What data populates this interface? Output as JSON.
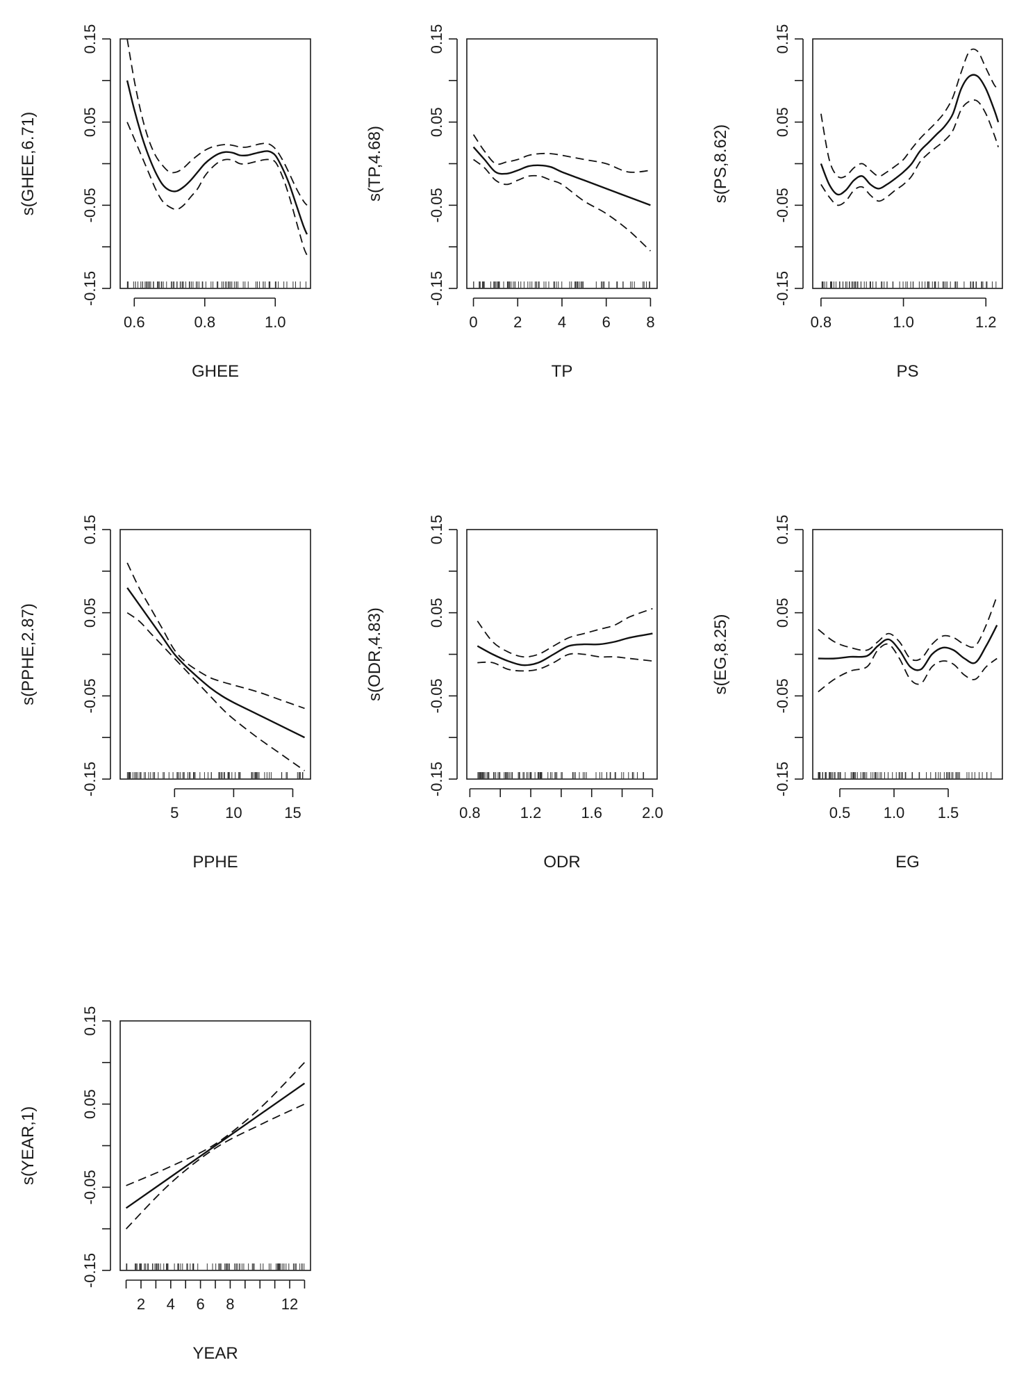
{
  "chart_data": [
    {
      "type": "line",
      "title": "",
      "xlabel": "GHEE",
      "ylabel": "s(GHEE,6.71)",
      "xlim": [
        0.56,
        1.1
      ],
      "ylim": [
        -0.15,
        0.15
      ],
      "xticks": [
        0.6,
        0.8,
        1.0
      ],
      "xtick_labels": [
        "0.6",
        "0.8",
        "1.0"
      ],
      "yticks": [
        -0.15,
        -0.1,
        -0.05,
        0,
        0.05,
        0.1,
        0.15
      ],
      "ytick_labels": [
        "-0.15",
        "",
        "-0.05",
        "",
        "0.05",
        "",
        "0.15"
      ],
      "series": [
        {
          "name": "fit",
          "x": [
            0.58,
            0.6,
            0.62,
            0.64,
            0.66,
            0.68,
            0.7,
            0.72,
            0.74,
            0.76,
            0.78,
            0.8,
            0.82,
            0.84,
            0.86,
            0.88,
            0.9,
            0.92,
            0.94,
            0.96,
            0.98,
            1.0,
            1.02,
            1.04,
            1.06,
            1.08,
            1.09
          ],
          "y": [
            0.1,
            0.065,
            0.035,
            0.01,
            -0.01,
            -0.025,
            -0.032,
            -0.033,
            -0.028,
            -0.02,
            -0.01,
            0.0,
            0.007,
            0.012,
            0.014,
            0.013,
            0.01,
            0.01,
            0.012,
            0.014,
            0.015,
            0.01,
            -0.005,
            -0.025,
            -0.05,
            -0.075,
            -0.085
          ]
        },
        {
          "name": "upper",
          "x": [
            0.58,
            0.6,
            0.62,
            0.64,
            0.66,
            0.68,
            0.7,
            0.72,
            0.74,
            0.76,
            0.78,
            0.8,
            0.82,
            0.84,
            0.86,
            0.88,
            0.9,
            0.92,
            0.94,
            0.96,
            0.98,
            1.0,
            1.02,
            1.04,
            1.06,
            1.08,
            1.09
          ],
          "y": [
            0.15,
            0.1,
            0.06,
            0.03,
            0.01,
            -0.002,
            -0.01,
            -0.01,
            -0.005,
            0.003,
            0.01,
            0.016,
            0.02,
            0.022,
            0.023,
            0.022,
            0.02,
            0.02,
            0.022,
            0.024,
            0.024,
            0.018,
            0.005,
            -0.012,
            -0.03,
            -0.045,
            -0.05
          ]
        },
        {
          "name": "lower",
          "x": [
            0.58,
            0.6,
            0.62,
            0.64,
            0.66,
            0.68,
            0.7,
            0.72,
            0.74,
            0.76,
            0.78,
            0.8,
            0.82,
            0.84,
            0.86,
            0.88,
            0.9,
            0.92,
            0.94,
            0.96,
            0.98,
            1.0,
            1.02,
            1.04,
            1.06,
            1.08,
            1.09
          ],
          "y": [
            0.05,
            0.03,
            0.01,
            -0.01,
            -0.03,
            -0.045,
            -0.052,
            -0.055,
            -0.05,
            -0.04,
            -0.03,
            -0.015,
            -0.005,
            0.002,
            0.005,
            0.004,
            0.0,
            0.0,
            0.002,
            0.004,
            0.005,
            0.002,
            -0.015,
            -0.04,
            -0.07,
            -0.1,
            -0.11
          ]
        }
      ]
    },
    {
      "type": "line",
      "title": "",
      "xlabel": "TP",
      "ylabel": "s(TP,4.68)",
      "xlim": [
        -0.3,
        8.3
      ],
      "ylim": [
        -0.15,
        0.15
      ],
      "xticks": [
        0,
        2,
        4,
        6,
        8
      ],
      "xtick_labels": [
        "0",
        "2",
        "4",
        "6",
        "8"
      ],
      "yticks": [
        -0.15,
        -0.1,
        -0.05,
        0,
        0.05,
        0.1,
        0.15
      ],
      "ytick_labels": [
        "-0.15",
        "",
        "-0.05",
        "",
        "0.05",
        "",
        "0.15"
      ],
      "series": [
        {
          "name": "fit",
          "x": [
            0,
            0.5,
            1,
            1.5,
            2,
            2.5,
            3,
            3.5,
            4,
            5,
            6,
            7,
            8
          ],
          "y": [
            0.02,
            0.005,
            -0.01,
            -0.012,
            -0.008,
            -0.003,
            -0.002,
            -0.004,
            -0.01,
            -0.02,
            -0.03,
            -0.04,
            -0.05
          ]
        },
        {
          "name": "upper",
          "x": [
            0,
            0.5,
            1,
            1.5,
            2,
            2.5,
            3,
            3.5,
            4,
            5,
            6,
            7,
            8
          ],
          "y": [
            0.035,
            0.015,
            0.0,
            0.002,
            0.005,
            0.01,
            0.012,
            0.012,
            0.01,
            0.005,
            0.0,
            -0.01,
            -0.008
          ]
        },
        {
          "name": "lower",
          "x": [
            0,
            0.5,
            1,
            1.5,
            2,
            2.5,
            3,
            3.5,
            4,
            5,
            6,
            7,
            8
          ],
          "y": [
            0.005,
            -0.005,
            -0.02,
            -0.025,
            -0.02,
            -0.015,
            -0.015,
            -0.02,
            -0.025,
            -0.045,
            -0.06,
            -0.08,
            -0.105
          ]
        }
      ]
    },
    {
      "type": "line",
      "title": "",
      "xlabel": "PS",
      "ylabel": "s(PS,8.62)",
      "xlim": [
        0.78,
        1.24
      ],
      "ylim": [
        -0.15,
        0.15
      ],
      "xticks": [
        0.8,
        1.0,
        1.2
      ],
      "xtick_labels": [
        "0.8",
        "1.0",
        "1.2"
      ],
      "yticks": [
        -0.15,
        -0.1,
        -0.05,
        0,
        0.05,
        0.1,
        0.15
      ],
      "ytick_labels": [
        "-0.15",
        "",
        "-0.05",
        "",
        "0.05",
        "",
        "0.15"
      ],
      "series": [
        {
          "name": "fit",
          "x": [
            0.8,
            0.82,
            0.84,
            0.86,
            0.88,
            0.9,
            0.92,
            0.94,
            0.96,
            0.98,
            1.0,
            1.02,
            1.04,
            1.06,
            1.08,
            1.1,
            1.12,
            1.14,
            1.16,
            1.18,
            1.2,
            1.22,
            1.23
          ],
          "y": [
            0.0,
            -0.025,
            -0.037,
            -0.032,
            -0.02,
            -0.015,
            -0.025,
            -0.03,
            -0.025,
            -0.018,
            -0.01,
            0.0,
            0.015,
            0.025,
            0.035,
            0.045,
            0.06,
            0.09,
            0.105,
            0.105,
            0.09,
            0.065,
            0.05
          ]
        },
        {
          "name": "upper",
          "x": [
            0.8,
            0.82,
            0.84,
            0.86,
            0.88,
            0.9,
            0.92,
            0.94,
            0.96,
            0.98,
            1.0,
            1.02,
            1.04,
            1.06,
            1.08,
            1.1,
            1.12,
            1.14,
            1.16,
            1.18,
            1.2,
            1.22,
            1.23
          ],
          "y": [
            0.06,
            0.005,
            -0.015,
            -0.015,
            -0.005,
            0.0,
            -0.008,
            -0.015,
            -0.01,
            -0.003,
            0.005,
            0.018,
            0.03,
            0.04,
            0.05,
            0.062,
            0.08,
            0.11,
            0.135,
            0.135,
            0.115,
            0.095,
            0.09
          ]
        },
        {
          "name": "lower",
          "x": [
            0.8,
            0.82,
            0.84,
            0.86,
            0.88,
            0.9,
            0.92,
            0.94,
            0.96,
            0.98,
            1.0,
            1.02,
            1.04,
            1.06,
            1.08,
            1.1,
            1.12,
            1.14,
            1.16,
            1.18,
            1.2,
            1.22,
            1.23
          ],
          "y": [
            -0.025,
            -0.04,
            -0.05,
            -0.045,
            -0.032,
            -0.028,
            -0.038,
            -0.045,
            -0.04,
            -0.032,
            -0.025,
            -0.015,
            0.002,
            0.012,
            0.02,
            0.028,
            0.04,
            0.065,
            0.075,
            0.075,
            0.06,
            0.035,
            0.02
          ]
        }
      ]
    },
    {
      "type": "line",
      "title": "",
      "xlabel": "PPHE",
      "ylabel": "s(PPHE,2.87)",
      "xlim": [
        0.4,
        16.5
      ],
      "ylim": [
        -0.15,
        0.15
      ],
      "xticks": [
        5,
        10,
        15
      ],
      "xtick_labels": [
        "5",
        "10",
        "15"
      ],
      "yticks": [
        -0.15,
        -0.1,
        -0.05,
        0,
        0.05,
        0.1,
        0.15
      ],
      "ytick_labels": [
        "-0.15",
        "",
        "-0.05",
        "",
        "0.05",
        "",
        "0.15"
      ],
      "series": [
        {
          "name": "fit",
          "x": [
            1,
            2,
            3,
            4,
            5,
            6,
            7,
            8,
            9,
            10,
            12,
            14,
            16
          ],
          "y": [
            0.08,
            0.06,
            0.04,
            0.02,
            0.0,
            -0.015,
            -0.028,
            -0.04,
            -0.05,
            -0.058,
            -0.072,
            -0.086,
            -0.1
          ]
        },
        {
          "name": "upper",
          "x": [
            1,
            2,
            3,
            4,
            5,
            6,
            7,
            8,
            9,
            10,
            12,
            14,
            16
          ],
          "y": [
            0.11,
            0.08,
            0.055,
            0.03,
            0.005,
            -0.01,
            -0.02,
            -0.028,
            -0.033,
            -0.037,
            -0.045,
            -0.055,
            -0.065
          ]
        },
        {
          "name": "lower",
          "x": [
            1,
            2,
            3,
            4,
            5,
            6,
            7,
            8,
            9,
            10,
            12,
            14,
            16
          ],
          "y": [
            0.05,
            0.04,
            0.025,
            0.01,
            -0.005,
            -0.02,
            -0.035,
            -0.05,
            -0.065,
            -0.078,
            -0.1,
            -0.12,
            -0.14
          ]
        }
      ]
    },
    {
      "type": "line",
      "title": "",
      "xlabel": "ODR",
      "ylabel": "s(ODR,4.83)",
      "xlim": [
        0.78,
        2.03
      ],
      "ylim": [
        -0.15,
        0.15
      ],
      "xticks": [
        0.8,
        1.2,
        1.6,
        2.0
      ],
      "xtick_labels": [
        "0.8",
        "1.2",
        "1.6",
        "2.0"
      ],
      "minor_xticks": [
        1.0,
        1.4,
        1.8
      ],
      "yticks": [
        -0.15,
        -0.1,
        -0.05,
        0,
        0.05,
        0.1,
        0.15
      ],
      "ytick_labels": [
        "-0.15",
        "",
        "-0.05",
        "",
        "0.05",
        "",
        "0.15"
      ],
      "series": [
        {
          "name": "fit",
          "x": [
            0.85,
            0.95,
            1.05,
            1.15,
            1.25,
            1.35,
            1.45,
            1.55,
            1.65,
            1.75,
            1.85,
            2.0
          ],
          "y": [
            0.01,
            0.0,
            -0.008,
            -0.013,
            -0.01,
            0.0,
            0.01,
            0.012,
            0.012,
            0.015,
            0.02,
            0.025
          ]
        },
        {
          "name": "upper",
          "x": [
            0.85,
            0.95,
            1.05,
            1.15,
            1.25,
            1.35,
            1.45,
            1.55,
            1.65,
            1.75,
            1.85,
            2.0
          ],
          "y": [
            0.04,
            0.015,
            0.003,
            -0.003,
            0.0,
            0.01,
            0.02,
            0.025,
            0.03,
            0.035,
            0.045,
            0.055
          ]
        },
        {
          "name": "lower",
          "x": [
            0.85,
            0.95,
            1.05,
            1.15,
            1.25,
            1.35,
            1.45,
            1.55,
            1.65,
            1.75,
            1.85,
            2.0
          ],
          "y": [
            -0.01,
            -0.01,
            -0.018,
            -0.02,
            -0.018,
            -0.01,
            0.0,
            0.0,
            -0.003,
            -0.003,
            -0.005,
            -0.008
          ]
        }
      ]
    },
    {
      "type": "line",
      "title": "",
      "xlabel": "EG",
      "ylabel": "s(EG,8.25)",
      "xlim": [
        0.25,
        2.0
      ],
      "ylim": [
        -0.15,
        0.15
      ],
      "xticks": [
        0.5,
        1.0,
        1.5
      ],
      "xtick_labels": [
        "0.5",
        "1.0",
        "1.5"
      ],
      "yticks": [
        -0.15,
        -0.1,
        -0.05,
        0,
        0.05,
        0.1,
        0.15
      ],
      "ytick_labels": [
        "-0.15",
        "",
        "-0.05",
        "",
        "0.05",
        "",
        "0.15"
      ],
      "series": [
        {
          "name": "fit",
          "x": [
            0.3,
            0.45,
            0.6,
            0.75,
            0.85,
            0.95,
            1.05,
            1.15,
            1.25,
            1.35,
            1.45,
            1.55,
            1.65,
            1.75,
            1.85,
            1.95
          ],
          "y": [
            -0.005,
            -0.005,
            -0.003,
            -0.002,
            0.01,
            0.018,
            0.005,
            -0.015,
            -0.018,
            0.0,
            0.008,
            0.005,
            -0.005,
            -0.01,
            0.01,
            0.035
          ]
        },
        {
          "name": "upper",
          "x": [
            0.3,
            0.45,
            0.6,
            0.75,
            0.85,
            0.95,
            1.05,
            1.15,
            1.25,
            1.35,
            1.45,
            1.55,
            1.65,
            1.75,
            1.85,
            1.95
          ],
          "y": [
            0.03,
            0.015,
            0.008,
            0.005,
            0.015,
            0.025,
            0.015,
            -0.005,
            -0.005,
            0.012,
            0.022,
            0.02,
            0.012,
            0.01,
            0.035,
            0.07
          ]
        },
        {
          "name": "lower",
          "x": [
            0.3,
            0.45,
            0.6,
            0.75,
            0.85,
            0.95,
            1.05,
            1.15,
            1.25,
            1.35,
            1.45,
            1.55,
            1.65,
            1.75,
            1.85,
            1.95
          ],
          "y": [
            -0.045,
            -0.03,
            -0.02,
            -0.015,
            0.005,
            0.012,
            -0.005,
            -0.03,
            -0.035,
            -0.015,
            -0.008,
            -0.012,
            -0.025,
            -0.03,
            -0.015,
            -0.005
          ]
        }
      ]
    },
    {
      "type": "line",
      "title": "",
      "xlabel": "YEAR",
      "ylabel": "s(YEAR,1)",
      "xlim": [
        0.6,
        13.4
      ],
      "ylim": [
        -0.15,
        0.15
      ],
      "xticks": [
        2,
        4,
        6,
        8,
        12
      ],
      "xtick_labels": [
        "2",
        "4",
        "6",
        "8",
        "12"
      ],
      "minor_xticks": [
        1,
        3,
        5,
        7,
        9,
        10,
        11,
        13
      ],
      "yticks": [
        -0.15,
        -0.1,
        -0.05,
        0,
        0.05,
        0.1,
        0.15
      ],
      "ytick_labels": [
        "-0.15",
        "",
        "-0.05",
        "",
        "0.05",
        "",
        "0.15"
      ],
      "series": [
        {
          "name": "fit",
          "x": [
            1,
            13
          ],
          "y": [
            -0.075,
            0.075
          ]
        },
        {
          "name": "upper",
          "x": [
            1,
            4,
            7,
            10,
            13
          ],
          "y": [
            -0.048,
            -0.025,
            0.002,
            0.045,
            0.1
          ]
        },
        {
          "name": "lower",
          "x": [
            1,
            4,
            7,
            10,
            13
          ],
          "y": [
            -0.1,
            -0.045,
            -0.003,
            0.025,
            0.05
          ]
        }
      ]
    }
  ]
}
